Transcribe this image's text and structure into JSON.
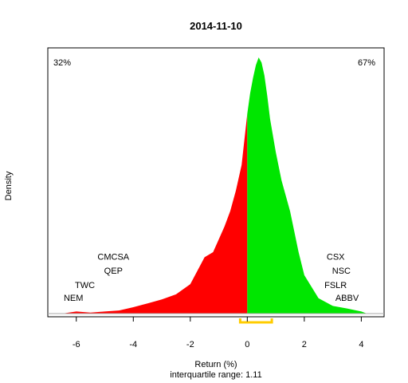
{
  "chart_data": {
    "type": "area",
    "title": "2014-11-10",
    "xlabel": "Return (%)",
    "ylabel": "Density",
    "caption": "interquartile range: 1.11",
    "xlim": [
      -7.0,
      4.8
    ],
    "ylim": [
      0,
      1.0
    ],
    "x_ticks": [
      -6,
      -4,
      -2,
      0,
      2,
      4
    ],
    "x_tick_labels": [
      "-6",
      "-4",
      "-2",
      "0",
      "2",
      "4"
    ],
    "negative_share": "32%",
    "positive_share": "67%",
    "colors": {
      "negative": "#ff0000",
      "positive": "#00e600",
      "negative_text": "#ff0000",
      "positive_text": "#00aa00",
      "baseline": "#aaaaaa",
      "iqr_bracket": "#ffcc00",
      "axis": "#000000"
    },
    "iqr": [
      -0.25,
      0.86
    ],
    "density": {
      "x": [
        -6.5,
        -6.0,
        -5.5,
        -5.0,
        -4.5,
        -4.0,
        -3.5,
        -3.0,
        -2.5,
        -2.0,
        -1.5,
        -1.2,
        -1.0,
        -0.8,
        -0.6,
        -0.4,
        -0.2,
        0.0,
        0.1,
        0.2,
        0.3,
        0.4,
        0.5,
        0.6,
        0.7,
        0.8,
        1.0,
        1.2,
        1.5,
        1.8,
        2.0,
        2.5,
        3.0,
        3.5,
        4.0,
        4.2
      ],
      "y": [
        0.0,
        0.008,
        0.004,
        0.008,
        0.012,
        0.025,
        0.04,
        0.055,
        0.075,
        0.115,
        0.22,
        0.24,
        0.29,
        0.34,
        0.4,
        0.48,
        0.58,
        0.78,
        0.86,
        0.92,
        0.97,
        1.0,
        0.98,
        0.93,
        0.85,
        0.76,
        0.63,
        0.52,
        0.4,
        0.24,
        0.15,
        0.06,
        0.03,
        0.02,
        0.008,
        0.0
      ]
    },
    "labels_left": [
      {
        "text": "CMCSA",
        "x": -4.7,
        "y": 0.21
      },
      {
        "text": "QEP",
        "x": -4.7,
        "y": 0.155
      },
      {
        "text": "TWC",
        "x": -5.7,
        "y": 0.1
      },
      {
        "text": "NEM",
        "x": -6.1,
        "y": 0.05
      }
    ],
    "labels_right": [
      {
        "text": "CSX",
        "x": 3.1,
        "y": 0.21
      },
      {
        "text": "NSC",
        "x": 3.3,
        "y": 0.155
      },
      {
        "text": "FSLR",
        "x": 3.1,
        "y": 0.1
      },
      {
        "text": "ABBV",
        "x": 3.5,
        "y": 0.05
      }
    ]
  }
}
